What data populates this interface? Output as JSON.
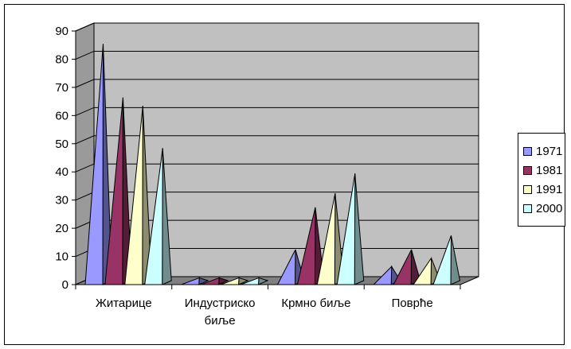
{
  "chart_data": {
    "type": "bar",
    "style": "3d-pyramid",
    "categories": [
      "Житарице",
      "Индустриско биље",
      "Крмно биље",
      "Поврће"
    ],
    "series": [
      {
        "name": "1971",
        "values": [
          84,
          1,
          11,
          5
        ],
        "color": "#9999ff"
      },
      {
        "name": "1981",
        "values": [
          65,
          1,
          26,
          11
        ],
        "color": "#993366"
      },
      {
        "name": "1991",
        "values": [
          62,
          1,
          31,
          8
        ],
        "color": "#ffffcc"
      },
      {
        "name": "2000",
        "values": [
          47,
          1,
          38,
          16
        ],
        "color": "#ccffff"
      }
    ],
    "ylim": [
      0,
      90
    ],
    "yticks": [
      0,
      10,
      20,
      30,
      40,
      50,
      60,
      70,
      80,
      90
    ],
    "grid": true,
    "legend_position": "right",
    "wall_color": "#c0c0c0",
    "title": "",
    "xlabel": "",
    "ylabel": ""
  },
  "legend": {
    "items": [
      {
        "label": "1971"
      },
      {
        "label": "1981"
      },
      {
        "label": "1991"
      },
      {
        "label": "2000"
      }
    ]
  }
}
